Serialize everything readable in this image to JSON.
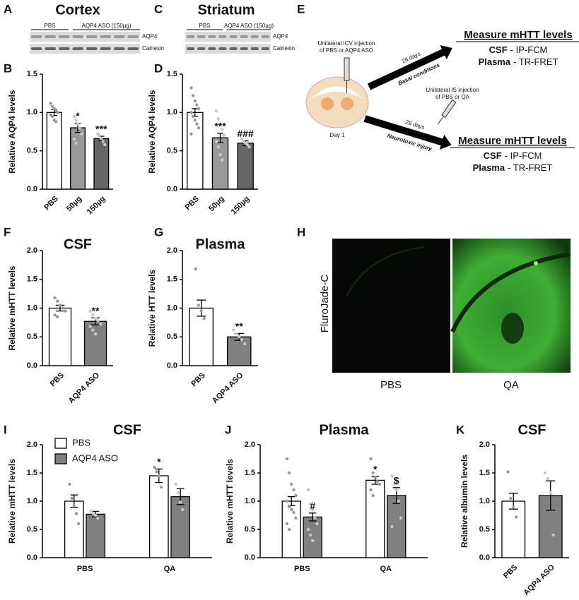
{
  "panel_labels": [
    "A",
    "B",
    "C",
    "D",
    "E",
    "F",
    "G",
    "H",
    "I",
    "J",
    "K"
  ],
  "blots": [
    {
      "title": "Cortex",
      "groups": [
        "PBS",
        "AQP4 ASO (150µg)"
      ],
      "rows": [
        "AQP4",
        "Calnexin"
      ]
    },
    {
      "title": "Striatum",
      "groups": [
        "PBS",
        "AQP4 ASO (150µg)"
      ],
      "rows": [
        "AQP4",
        "Calnexin"
      ]
    }
  ],
  "schematic": {
    "injection1": [
      "Unilateral ICV injection",
      "of PBS or AQP4 ASO"
    ],
    "day": "Day 1",
    "arrow1_days": "28 days",
    "arrow1_label": "Basal conditions",
    "injection2": [
      "Unilateral IS injection",
      "of PBS or QA"
    ],
    "arrow2_days": "28 days",
    "arrow2_label": "Neurotoxic injury",
    "measures": [
      {
        "title": "Measure mHTT levels",
        "csf": "CSF",
        "csf_method": "- IP-FCM",
        "plasma": "Plasma",
        "plasma_method": "- TR-FRET"
      },
      {
        "title": "Measure mHTT levels",
        "csf": "CSF",
        "csf_method": "- IP-FCM",
        "plasma": "Plasma",
        "plasma_method": "- TR-FRET"
      }
    ]
  },
  "micrographs": {
    "stain": "FluroJade-C",
    "labels": [
      "PBS",
      "QA"
    ]
  },
  "chart_data": [
    {
      "type": "bar",
      "ylabel": "Relative AQP4 levels",
      "categories": [
        "PBS",
        "50µg",
        "150µg"
      ],
      "values": [
        1.0,
        0.8,
        0.66
      ],
      "errors": [
        0.04,
        0.06,
        0.03
      ],
      "colors": [
        "#ffffff",
        "#999999",
        "#666666"
      ],
      "annotations": [
        null,
        "*",
        "***"
      ],
      "points": [
        [
          1.12,
          1.08,
          1.05,
          1.02,
          1.0,
          0.97,
          0.95,
          0.9,
          0.88
        ],
        [
          0.95,
          0.9,
          0.85,
          0.8,
          0.72,
          0.65,
          0.6
        ],
        [
          0.72,
          0.7,
          0.66,
          0.62,
          0.58
        ]
      ],
      "ylim": [
        0,
        1.5
      ],
      "yticks": [
        {
          "value": 0,
          "label": "0.0"
        },
        {
          "value": 0.5,
          "label": "0.5"
        },
        {
          "value": 1,
          "label": "1.0"
        },
        {
          "value": 1.5,
          "label": "1.5"
        }
      ]
    },
    {
      "type": "bar",
      "ylabel": "Relative AQP4 levels",
      "categories": [
        "PBS",
        "50µg",
        "150µg"
      ],
      "values": [
        1.0,
        0.67,
        0.6
      ],
      "errors": [
        0.05,
        0.06,
        0.03
      ],
      "colors": [
        "#ffffff",
        "#999999",
        "#666666"
      ],
      "annotations": [
        null,
        "***",
        "###"
      ],
      "points": [
        [
          1.32,
          1.22,
          1.15,
          1.1,
          1.05,
          1.0,
          0.95,
          0.9,
          0.85,
          0.8,
          0.72
        ],
        [
          1.02,
          0.92,
          0.85,
          0.78,
          0.7,
          0.62,
          0.55,
          0.45,
          0.38
        ],
        [
          0.66,
          0.62,
          0.6,
          0.58,
          0.55
        ]
      ],
      "ylim": [
        0,
        1.5
      ],
      "yticks": [
        {
          "value": 0,
          "label": "0.0"
        },
        {
          "value": 0.5,
          "label": "0.5"
        },
        {
          "value": 1,
          "label": "1.0"
        },
        {
          "value": 1.5,
          "label": "1.5"
        }
      ]
    },
    {
      "type": "bar",
      "title": "CSF",
      "ylabel": "Relative mHTT levels",
      "categories": [
        "PBS",
        "AQP4 ASO"
      ],
      "values": [
        1.0,
        0.77
      ],
      "errors": [
        0.05,
        0.06
      ],
      "colors": [
        "#ffffff",
        "#808080"
      ],
      "annotations": [
        null,
        "**"
      ],
      "points": [
        [
          1.18,
          1.12,
          1.05,
          1.0,
          0.95,
          0.88,
          0.85
        ],
        [
          0.95,
          0.88,
          0.82,
          0.78,
          0.72,
          0.68,
          0.62,
          0.55
        ]
      ],
      "ylim": [
        0,
        2
      ],
      "yticks": [
        {
          "value": 0,
          "label": "0.0"
        },
        {
          "value": 0.5,
          "label": "0.5"
        },
        {
          "value": 1,
          "label": "1.0"
        },
        {
          "value": 1.5,
          "label": "1.5"
        },
        {
          "value": 2,
          "label": "2.0"
        }
      ]
    },
    {
      "type": "bar",
      "title": "Plasma",
      "ylabel": "Relative HTT levels",
      "categories": [
        "PBS",
        "AQP4 ASO"
      ],
      "values": [
        1.0,
        0.5
      ],
      "errors": [
        0.14,
        0.06
      ],
      "colors": [
        "#ffffff",
        "#808080"
      ],
      "annotations": [
        null,
        "**"
      ],
      "points": [
        [
          1.68,
          1.05,
          0.95,
          0.82
        ],
        [
          0.62,
          0.55,
          0.5,
          0.45,
          0.38
        ]
      ],
      "ylim": [
        0,
        2
      ],
      "yticks": [
        {
          "value": 0,
          "label": "0.0"
        },
        {
          "value": 0.5,
          "label": "0.5"
        },
        {
          "value": 1,
          "label": "1.0"
        },
        {
          "value": 1.5,
          "label": "1.5"
        },
        {
          "value": 2,
          "label": "2.0"
        }
      ]
    },
    {
      "type": "bar",
      "title": "CSF",
      "ylabel": "Relative mHTT levels",
      "categories": [
        "PBS",
        "QA"
      ],
      "legend": true,
      "series": [
        {
          "name": "PBS",
          "color": "#ffffff",
          "values": [
            1.0,
            1.45
          ],
          "errors": [
            0.11,
            0.12
          ],
          "annotations": [
            null,
            "*"
          ],
          "points": [
            [
              1.3,
              1.05,
              0.92,
              0.78,
              0.6
            ],
            [
              1.6,
              1.52,
              1.45,
              1.25
            ]
          ]
        },
        {
          "name": "AQP4 ASO",
          "color": "#808080",
          "values": [
            0.77,
            1.08
          ],
          "errors": [
            0.05,
            0.14
          ],
          "points": [
            [
              0.82,
              0.78,
              0.75,
              0.7
            ],
            [
              1.3,
              1.15,
              0.98,
              0.85
            ]
          ]
        }
      ],
      "ylim": [
        0,
        2
      ],
      "yticks": [
        {
          "value": 0,
          "label": "0.0"
        },
        {
          "value": 0.5,
          "label": "0.5"
        },
        {
          "value": 1,
          "label": "1.0"
        },
        {
          "value": 1.5,
          "label": "1.5"
        },
        {
          "value": 2,
          "label": "2.0"
        }
      ]
    },
    {
      "type": "bar",
      "title": "Plasma",
      "ylabel": "Relative mHTT levels",
      "categories": [
        "PBS",
        "QA"
      ],
      "series": [
        {
          "color": "#ffffff",
          "values": [
            1.0,
            1.37
          ],
          "errors": [
            0.08,
            0.07
          ],
          "annotations": [
            null,
            "*"
          ],
          "points": [
            [
              1.75,
              1.5,
              1.3,
              1.2,
              1.1,
              1.0,
              0.9,
              0.85,
              0.8,
              0.7,
              0.6,
              0.5
            ],
            [
              1.75,
              1.5,
              1.42,
              1.35,
              1.3,
              1.2,
              1.1
            ]
          ]
        },
        {
          "color": "#808080",
          "values": [
            0.72,
            1.1
          ],
          "errors": [
            0.07,
            0.14
          ],
          "annotations": [
            "#",
            "$"
          ],
          "points": [
            [
              1.2,
              0.95,
              0.85,
              0.7,
              0.6,
              0.5,
              0.4,
              0.3
            ],
            [
              1.45,
              1.3,
              1.2,
              1.0,
              0.7,
              0.55
            ]
          ]
        }
      ],
      "ylim": [
        0,
        2
      ],
      "yticks": [
        {
          "value": 0,
          "label": "0.0"
        },
        {
          "value": 0.5,
          "label": "0.5"
        },
        {
          "value": 1,
          "label": "1.0"
        },
        {
          "value": 1.5,
          "label": "1.5"
        },
        {
          "value": 2,
          "label": "2.0"
        }
      ]
    },
    {
      "type": "bar",
      "title": "CSF",
      "ylabel": "Relative albumin levels",
      "categories": [
        "PBS",
        "AQP4 ASO"
      ],
      "values": [
        1.0,
        1.1
      ],
      "errors": [
        0.14,
        0.26
      ],
      "colors": [
        "#ffffff",
        "#808080"
      ],
      "points": [
        [
          1.52,
          1.05,
          0.9,
          0.72
        ],
        [
          1.5,
          1.4,
          1.15,
          0.4
        ]
      ],
      "ylim": [
        0,
        2
      ],
      "yticks": [
        {
          "value": 0,
          "label": "0.0"
        },
        {
          "value": 0.5,
          "label": "0.5"
        },
        {
          "value": 1,
          "label": "1.0"
        },
        {
          "value": 1.5,
          "label": "1.5"
        },
        {
          "value": 2,
          "label": "2.0"
        }
      ]
    }
  ]
}
